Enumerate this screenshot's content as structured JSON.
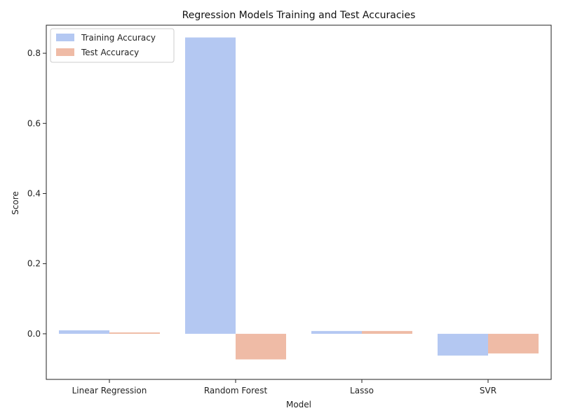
{
  "chart_data": {
    "type": "bar",
    "title": "Regression Models Training and Test Accuracies",
    "xlabel": "Model",
    "ylabel": "Score",
    "categories": [
      "Linear Regression",
      "Random Forest",
      "Lasso",
      "SVR"
    ],
    "series": [
      {
        "name": "Training Accuracy",
        "values": [
          0.01,
          0.845,
          0.008,
          -0.062
        ],
        "color": "#b4c8f2"
      },
      {
        "name": "Test Accuracy",
        "values": [
          0.004,
          -0.073,
          0.008,
          -0.056
        ],
        "color": "#efbba6"
      }
    ],
    "ylim": [
      -0.13,
      0.88
    ],
    "yticks": [
      0.0,
      0.2,
      0.4,
      0.6,
      0.8
    ],
    "ytick_labels": [
      "0.0",
      "0.2",
      "0.4",
      "0.6",
      "0.8"
    ],
    "legend_position": "top-left",
    "grid": false
  }
}
